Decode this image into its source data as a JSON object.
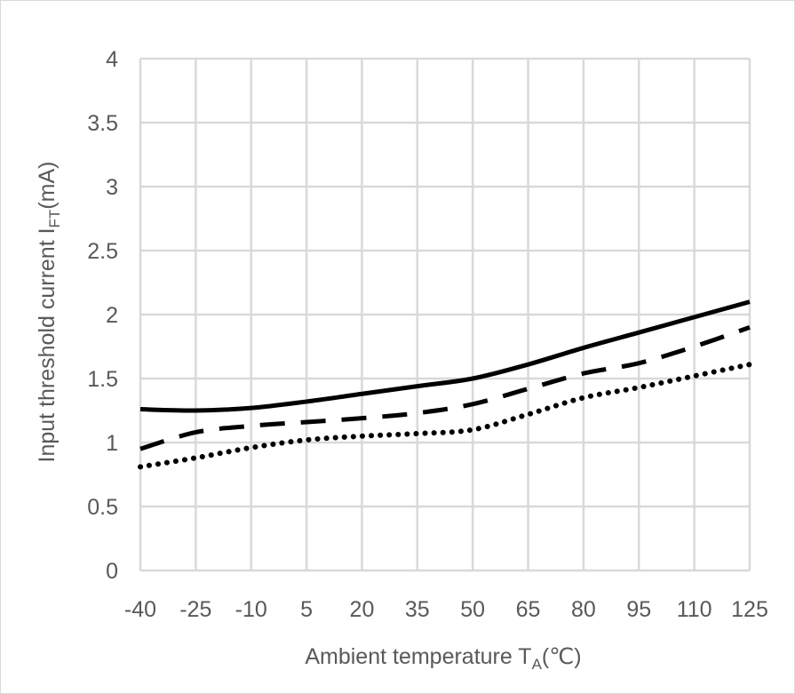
{
  "chart_data": {
    "type": "line",
    "title": "",
    "xlabel": {
      "main": "Ambient temperature T",
      "sub": "A",
      "suffix": "(℃)"
    },
    "ylabel": {
      "main": "Input threshold current I",
      "sub": "FT",
      "suffix": "(mA)"
    },
    "x": [
      -40,
      -25,
      -10,
      5,
      20,
      35,
      50,
      65,
      80,
      95,
      110,
      125
    ],
    "x_tick_labels": [
      "-40",
      "-25",
      "-10",
      "5",
      "20",
      "35",
      "50",
      "65",
      "80",
      "95",
      "110",
      "125"
    ],
    "y_tick_labels": [
      "0",
      "0.5",
      "1",
      "1.5",
      "2",
      "2.5",
      "3",
      "3.5",
      "4"
    ],
    "y_ticks": [
      0,
      0.5,
      1,
      1.5,
      2,
      2.5,
      3,
      3.5,
      4
    ],
    "xlim": [
      -40,
      125
    ],
    "ylim": [
      0,
      4
    ],
    "grid": true,
    "legend": "none",
    "series": [
      {
        "name": "solid",
        "style": "solid",
        "color": "#000000",
        "values": [
          1.26,
          1.25,
          1.27,
          1.32,
          1.38,
          1.44,
          1.5,
          1.61,
          1.74,
          1.86,
          1.98,
          2.1
        ]
      },
      {
        "name": "dashed",
        "style": "dashed",
        "color": "#000000",
        "values": [
          0.95,
          1.08,
          1.13,
          1.16,
          1.19,
          1.23,
          1.3,
          1.42,
          1.54,
          1.62,
          1.75,
          1.9
        ]
      },
      {
        "name": "dotted",
        "style": "dotted",
        "color": "#000000",
        "values": [
          0.81,
          0.88,
          0.96,
          1.02,
          1.05,
          1.07,
          1.1,
          1.22,
          1.35,
          1.43,
          1.52,
          1.61
        ]
      }
    ]
  }
}
